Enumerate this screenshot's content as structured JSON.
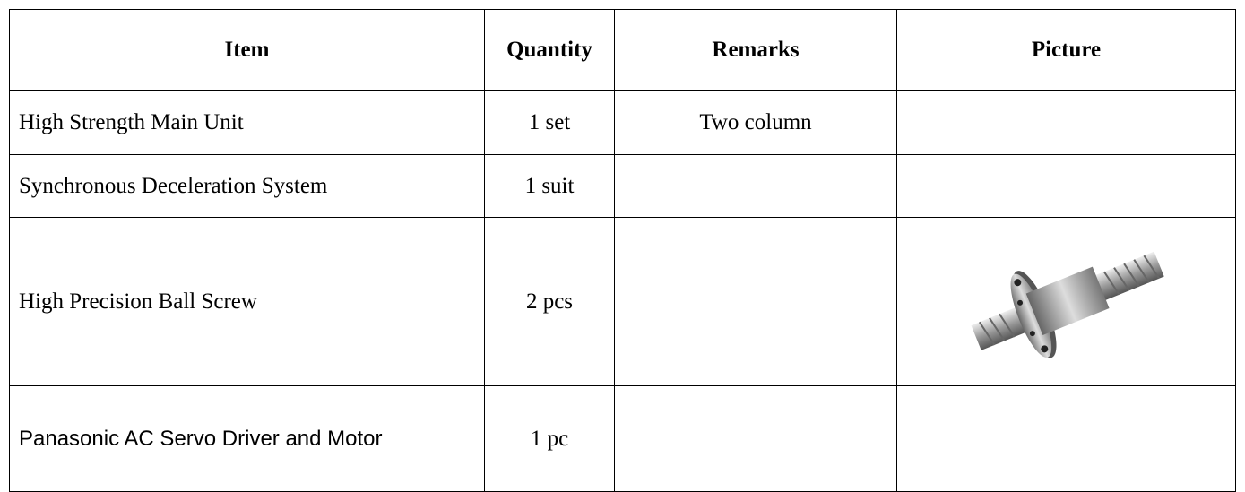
{
  "table": {
    "header": [
      "Item",
      "Quantity",
      "Remarks",
      "Picture"
    ],
    "rows": [
      {
        "item": "High Strength Main Unit",
        "quantity": "1 set",
        "remarks": "Two column"
      },
      {
        "item": "Synchronous Deceleration System",
        "quantity": "1 suit"
      },
      {
        "item": "High Precision Ball Screw",
        "quantity": "2 pcs"
      },
      {
        "item": "Panasonic AC Servo Driver and Motor",
        "quantity": "1 pc"
      }
    ]
  }
}
